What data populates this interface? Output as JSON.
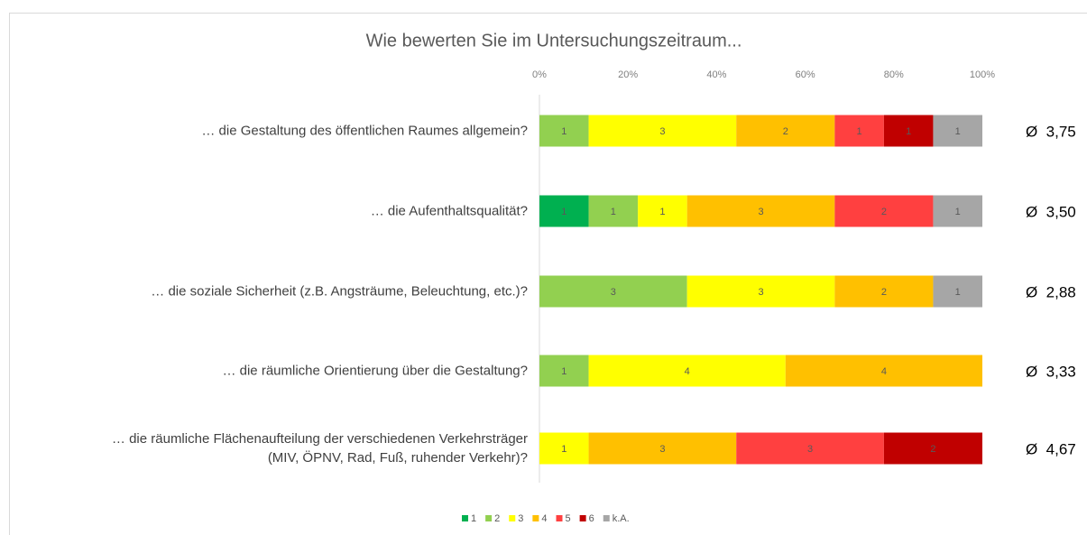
{
  "chart_data": {
    "type": "bar_stacked_percent",
    "orientation": "horizontal",
    "title": "Wie bewerten Sie im Untersuchungszeitraum...",
    "categories": [
      "… die Gestaltung des öffentlichen Raumes allgemein?",
      "… die Aufenthaltsqualität?",
      "… die soziale Sicherheit (z.B. Angsträume, Beleuchtung, etc.)?",
      "… die räumliche Orientierung über die Gestaltung?",
      "… die räumliche Flächenaufteilung der verschiedenen Verkehrsträger\n(MIV, ÖPNV, Rad, Fuß, ruhender Verkehr)?"
    ],
    "series": [
      {
        "name": "1",
        "color": "#00b050",
        "values": [
          null,
          1,
          null,
          null,
          null
        ]
      },
      {
        "name": "2",
        "color": "#92d050",
        "values": [
          1,
          1,
          3,
          1,
          null
        ]
      },
      {
        "name": "3",
        "color": "#ffff00",
        "values": [
          3,
          1,
          3,
          4,
          1
        ]
      },
      {
        "name": "4",
        "color": "#ffc000",
        "values": [
          2,
          3,
          2,
          4,
          3
        ]
      },
      {
        "name": "5",
        "color": "#ff4040",
        "values": [
          1,
          2,
          null,
          null,
          3
        ]
      },
      {
        "name": "6",
        "color": "#c00000",
        "values": [
          1,
          null,
          null,
          null,
          2
        ]
      },
      {
        "name": "k.A.",
        "color": "#a6a6a6",
        "values": [
          1,
          1,
          1,
          null,
          null
        ]
      }
    ],
    "averages": [
      "Ø  3,75",
      "Ø  3,50",
      "Ø  2,88",
      "Ø  3,33",
      "Ø  4,67"
    ],
    "xlim": [
      0,
      100
    ],
    "xticks": [
      {
        "value": 0,
        "label": "0%"
      },
      {
        "value": 20,
        "label": "20%"
      },
      {
        "value": 40,
        "label": "40%"
      },
      {
        "value": 60,
        "label": "60%"
      },
      {
        "value": 80,
        "label": "80%"
      },
      {
        "value": 100,
        "label": "100%"
      }
    ],
    "legend": "bottom"
  }
}
